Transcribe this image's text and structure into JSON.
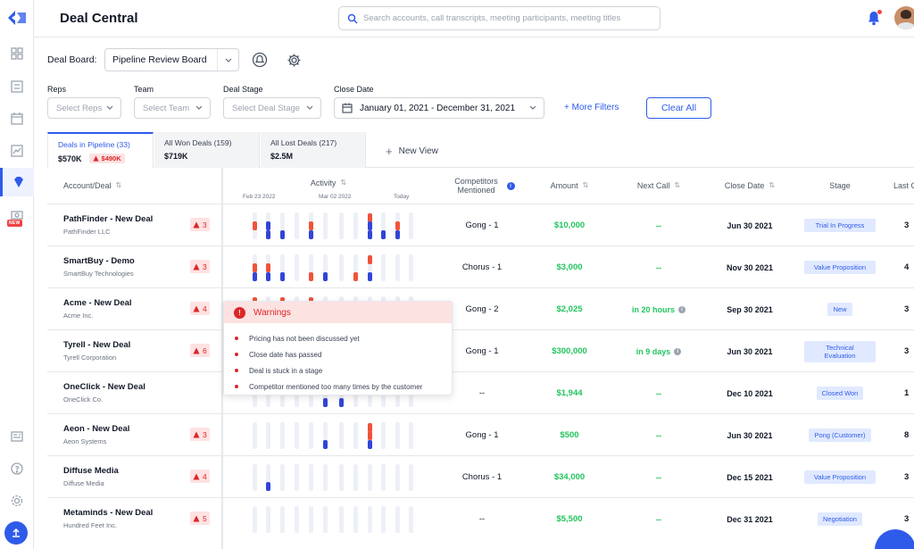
{
  "header": {
    "title": "Deal Central",
    "search_placeholder": "Search accounts, call transcripts, meeting participants, meeting titles"
  },
  "rail": {
    "items": [
      "grid-icon",
      "book-icon",
      "calendar-icon",
      "report-icon",
      "deals-icon",
      "dollar-icon",
      "news-icon",
      "help-icon",
      "settings-icon"
    ],
    "new_badge": "NEW"
  },
  "board": {
    "label": "Deal Board:",
    "selected": "Pipeline Review Board"
  },
  "filters": {
    "reps_label": "Reps",
    "reps_placeholder": "Select Reps",
    "team_label": "Team",
    "team_placeholder": "Select Team",
    "stage_label": "Deal Stage",
    "stage_placeholder": "Select Deal Stage",
    "close_label": "Close Date",
    "close_value": "January 01, 2021 - December 31, 2021",
    "more": "+ More Filters",
    "clear": "Clear All"
  },
  "tabs": [
    {
      "label": "Deals in Pipeline (33)",
      "amount": "$570K",
      "warning": "$490K"
    },
    {
      "label": "All Won Deals (159)",
      "amount": "$719K"
    },
    {
      "label": "All Lost Deals (217)",
      "amount": "$2.5M"
    }
  ],
  "new_view": "New View",
  "columns": {
    "account": "Account/Deal",
    "activity": "Activity",
    "competitors": "Competitors Mentioned",
    "amount": "Amount",
    "next_call": "Next Call",
    "close_date": "Close Date",
    "stage": "Stage",
    "last": "Last C"
  },
  "activity_dates": [
    "Feb 23 2022",
    "Mar 02 2022",
    "Today"
  ],
  "rows": [
    {
      "name": "PathFinder - New Deal",
      "company": "PathFinder LLC",
      "warnings": "3",
      "competitors": "Gong - 1",
      "amount": "$10,000",
      "next_call": "--",
      "next_info": false,
      "close": "Jun 30 2021",
      "stage": "Trial In Progress",
      "last": "3",
      "bars": [
        [
          0,
          2,
          "r"
        ],
        [
          1,
          2,
          "b"
        ],
        [
          1,
          3,
          "b"
        ],
        [
          2,
          3,
          "b"
        ],
        [
          4,
          2,
          "r"
        ],
        [
          4,
          3,
          "b"
        ],
        [
          8,
          1,
          "r"
        ],
        [
          8,
          2,
          "b"
        ],
        [
          8,
          3,
          "b"
        ],
        [
          9,
          3,
          "b"
        ],
        [
          10,
          2,
          "r"
        ],
        [
          10,
          3,
          "b"
        ]
      ]
    },
    {
      "name": "SmartBuy - Demo",
      "company": "SmartBuy Technologies",
      "warnings": "3",
      "competitors": "Chorus - 1",
      "amount": "$3,000",
      "next_call": "--",
      "next_info": false,
      "close": "Nov 30 2021",
      "stage": "Value Proposition",
      "last": "4",
      "bars": [
        [
          0,
          2,
          "r"
        ],
        [
          0,
          3,
          "b"
        ],
        [
          1,
          2,
          "r"
        ],
        [
          1,
          3,
          "b"
        ],
        [
          2,
          3,
          "b"
        ],
        [
          4,
          3,
          "r"
        ],
        [
          5,
          3,
          "b"
        ],
        [
          7,
          3,
          "r"
        ],
        [
          8,
          1,
          "r"
        ],
        [
          8,
          3,
          "b"
        ]
      ]
    },
    {
      "name": "Acme - New Deal",
      "company": "Acme Inc.",
      "warnings": "4",
      "competitors": "Gong - 2",
      "amount": "$2,025",
      "next_call": "in 20 hours",
      "next_info": true,
      "close": "Sep 30 2021",
      "stage": "New",
      "last": "3",
      "bars": [
        [
          0,
          1,
          "r"
        ],
        [
          2,
          1,
          "r"
        ],
        [
          4,
          1,
          "r"
        ]
      ]
    },
    {
      "name": "Tyrell - New Deal",
      "company": "Tyrell Corporation",
      "warnings": "6",
      "competitors": "Gong - 1",
      "amount": "$300,000",
      "next_call": "in 9 days",
      "next_info": true,
      "close": "Jun 30 2021",
      "stage": "Technical Evaluation",
      "last": "3",
      "bars": []
    },
    {
      "name": "OneClick - New Deal",
      "company": "OneClick Co.",
      "warnings": "",
      "competitors": "--",
      "amount": "$1,944",
      "next_call": "--",
      "next_info": false,
      "close": "Dec 10 2021",
      "stage": "Closed Won",
      "last": "1",
      "bars": [
        [
          5,
          3,
          "b"
        ],
        [
          6,
          3,
          "b"
        ]
      ]
    },
    {
      "name": "Aeon - New Deal",
      "company": "Aeon Systems",
      "warnings": "3",
      "competitors": "Gong - 1",
      "amount": "$500",
      "next_call": "--",
      "next_info": false,
      "close": "Jun 30 2021",
      "stage": "Pong (Customer)",
      "last": "8",
      "bars": [
        [
          5,
          3,
          "b"
        ],
        [
          8,
          1,
          "r"
        ],
        [
          8,
          2,
          "r"
        ],
        [
          8,
          3,
          "b"
        ]
      ]
    },
    {
      "name": "Diffuse Media",
      "company": "Diffuse Media",
      "warnings": "4",
      "competitors": "Chorus - 1",
      "amount": "$34,000",
      "next_call": "--",
      "next_info": false,
      "close": "Dec 15 2021",
      "stage": "Value Proposition",
      "last": "3",
      "bars": [
        [
          1,
          3,
          "b"
        ]
      ]
    },
    {
      "name": "Metaminds - New Deal",
      "company": "Hundred Feet Inc.",
      "warnings": "5",
      "competitors": "--",
      "amount": "$5,500",
      "next_call": "--",
      "next_info": false,
      "close": "Dec 31 2021",
      "stage": "Negotiation",
      "last": "3",
      "bars": []
    }
  ],
  "popup": {
    "title": "Warnings",
    "items": [
      "Pricing has not been discussed yet",
      "Close date has passed",
      "Deal is stuck in a stage",
      "Competitor mentioned too many times by the customer"
    ]
  },
  "colors": {
    "accent": "#2f5bea",
    "success": "#22c55e",
    "danger": "#dc2626",
    "bar_red": "#f0533a",
    "bar_blue": "#3245d6"
  }
}
